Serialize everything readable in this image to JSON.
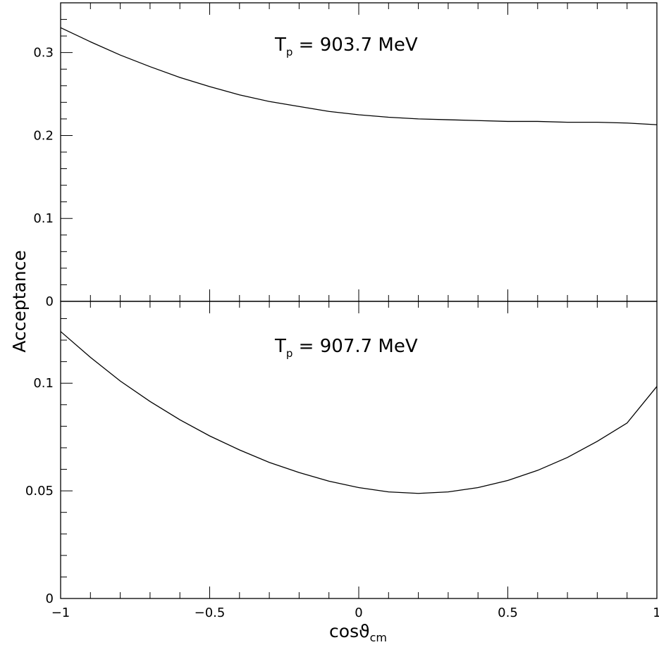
{
  "chart_data": [
    {
      "type": "line",
      "title": "T_p = 903.7 MeV",
      "title_main": "T",
      "title_sub": "p",
      "title_rest": " = 903.7 MeV",
      "xlim": [
        -1,
        1
      ],
      "ylim": [
        0,
        0.36
      ],
      "yticks": [
        0,
        0.1,
        0.2,
        0.3
      ],
      "ytick_labels": [
        "0",
        "0.1",
        "0.2",
        "0.3"
      ],
      "grid": false,
      "series": [
        {
          "x": [
            -1.0,
            -0.9,
            -0.8,
            -0.7,
            -0.6,
            -0.5,
            -0.4,
            -0.3,
            -0.2,
            -0.1,
            0.0,
            0.1,
            0.2,
            0.3,
            0.4,
            0.5,
            0.6,
            0.7,
            0.8,
            0.9,
            1.0
          ],
          "y": [
            0.33,
            0.313,
            0.297,
            0.283,
            0.27,
            0.259,
            0.249,
            0.241,
            0.235,
            0.229,
            0.225,
            0.222,
            0.22,
            0.219,
            0.218,
            0.217,
            0.217,
            0.216,
            0.216,
            0.215,
            0.213
          ],
          "color": "#000000"
        }
      ]
    },
    {
      "type": "line",
      "title": "T_p = 907.7 MeV",
      "title_main": "T",
      "title_sub": "p",
      "title_rest": " = 907.7 MeV",
      "xlim": [
        -1,
        1
      ],
      "ylim": [
        0,
        0.138
      ],
      "yticks": [
        0,
        0.05,
        0.1
      ],
      "ytick_labels": [
        "0",
        "0.05",
        "0.1"
      ],
      "xticks": [
        -1,
        -0.5,
        0,
        0.5,
        1
      ],
      "xtick_labels": [
        "−1",
        "−0.5",
        "0",
        "0.5",
        "1"
      ],
      "grid": false,
      "series": [
        {
          "x": [
            -1.0,
            -0.9,
            -0.8,
            -0.7,
            -0.6,
            -0.5,
            -0.4,
            -0.3,
            -0.2,
            -0.1,
            0.0,
            0.1,
            0.2,
            0.3,
            0.4,
            0.5,
            0.6,
            0.7,
            0.8,
            0.9,
            1.0
          ],
          "y": [
            0.124,
            0.112,
            0.101,
            0.0915,
            0.083,
            0.0755,
            0.069,
            0.0632,
            0.0585,
            0.0545,
            0.0515,
            0.0495,
            0.0488,
            0.0495,
            0.0515,
            0.0548,
            0.0595,
            0.0655,
            0.073,
            0.0815,
            0.0985
          ],
          "color": "#000000"
        }
      ]
    }
  ],
  "axes": {
    "ylabel": "Acceptance",
    "xlabel_main": "cosϑ",
    "xlabel_sub": "cm"
  }
}
